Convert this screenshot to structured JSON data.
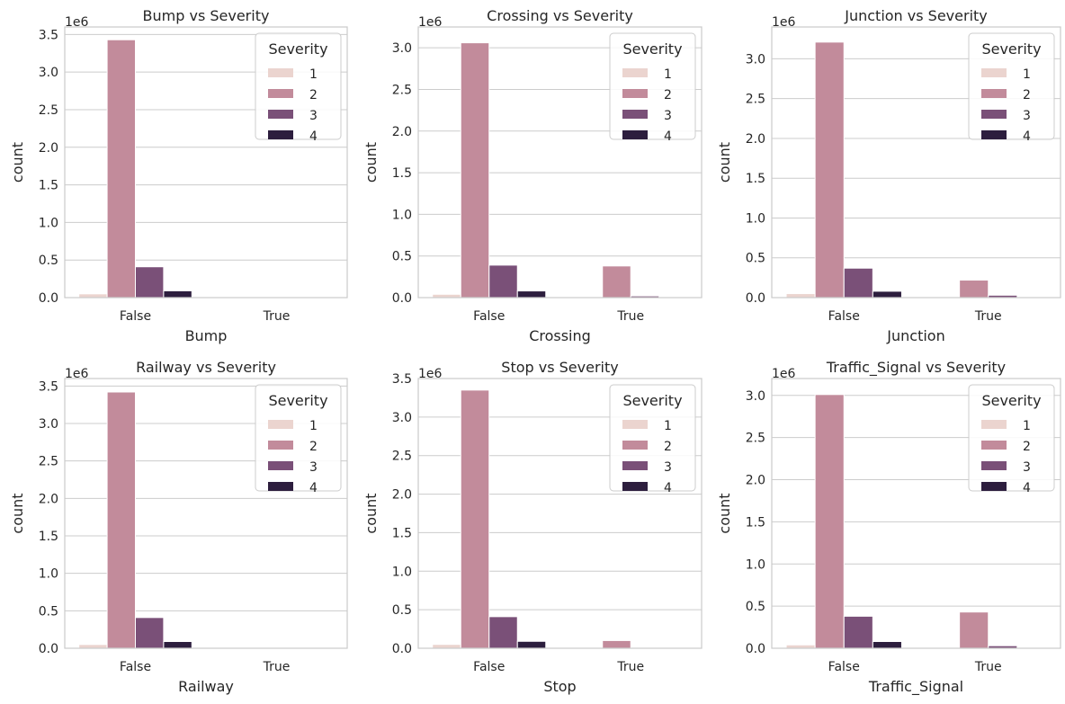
{
  "figure": {
    "background": "#ffffff"
  },
  "palette": {
    "1": "#ebd4cf",
    "2": "#c28b9b",
    "3": "#7a5078",
    "4": "#2d1e3e",
    "grid": "#cccccc",
    "axis_border": "#cccccc",
    "text": "#262626"
  },
  "chart_data": [
    {
      "type": "bar",
      "title": "Bump vs Severity",
      "xlabel": "Bump",
      "ylabel": "count",
      "offset_label": "1e6",
      "categories": [
        "False",
        "True"
      ],
      "yticks": [
        "0.0",
        "0.5",
        "1.0",
        "1.5",
        "2.0",
        "2.5",
        "3.0",
        "3.5"
      ],
      "ylim": [
        0,
        3.6
      ],
      "legend_title": "Severity",
      "legend_location": "upper right",
      "series": [
        {
          "name": "1",
          "values": [
            0.05,
            0.0
          ]
        },
        {
          "name": "2",
          "values": [
            3.43,
            0.002
          ]
        },
        {
          "name": "3",
          "values": [
            0.41,
            0.0
          ]
        },
        {
          "name": "4",
          "values": [
            0.09,
            0.0
          ]
        }
      ]
    },
    {
      "type": "bar",
      "title": "Crossing vs Severity",
      "xlabel": "Crossing",
      "ylabel": "count",
      "offset_label": "1e6",
      "categories": [
        "False",
        "True"
      ],
      "yticks": [
        "0.0",
        "0.5",
        "1.0",
        "1.5",
        "2.0",
        "2.5",
        "3.0"
      ],
      "ylim": [
        0,
        3.25
      ],
      "legend_title": "Severity",
      "legend_location": "upper right",
      "series": [
        {
          "name": "1",
          "values": [
            0.04,
            0.01
          ]
        },
        {
          "name": "2",
          "values": [
            3.06,
            0.38
          ]
        },
        {
          "name": "3",
          "values": [
            0.39,
            0.02
          ]
        },
        {
          "name": "4",
          "values": [
            0.08,
            0.005
          ]
        }
      ]
    },
    {
      "type": "bar",
      "title": "Junction vs Severity",
      "xlabel": "Junction",
      "ylabel": "count",
      "offset_label": "1e6",
      "categories": [
        "False",
        "True"
      ],
      "yticks": [
        "0.0",
        "0.5",
        "1.0",
        "1.5",
        "2.0",
        "2.5",
        "3.0"
      ],
      "ylim": [
        0,
        3.4
      ],
      "legend_title": "Severity",
      "legend_location": "upper right",
      "series": [
        {
          "name": "1",
          "values": [
            0.05,
            0.005
          ]
        },
        {
          "name": "2",
          "values": [
            3.21,
            0.22
          ]
        },
        {
          "name": "3",
          "values": [
            0.37,
            0.03
          ]
        },
        {
          "name": "4",
          "values": [
            0.08,
            0.005
          ]
        }
      ]
    },
    {
      "type": "bar",
      "title": "Railway vs Severity",
      "xlabel": "Railway",
      "ylabel": "count",
      "offset_label": "1e6",
      "categories": [
        "False",
        "True"
      ],
      "yticks": [
        "0.0",
        "0.5",
        "1.0",
        "1.5",
        "2.0",
        "2.5",
        "3.0",
        "3.5"
      ],
      "ylim": [
        0,
        3.6
      ],
      "legend_title": "Severity",
      "legend_location": "upper right",
      "series": [
        {
          "name": "1",
          "values": [
            0.05,
            0.0
          ]
        },
        {
          "name": "2",
          "values": [
            3.42,
            0.01
          ]
        },
        {
          "name": "3",
          "values": [
            0.41,
            0.002
          ]
        },
        {
          "name": "4",
          "values": [
            0.09,
            0.0
          ]
        }
      ]
    },
    {
      "type": "bar",
      "title": "Stop vs Severity",
      "xlabel": "Stop",
      "ylabel": "count",
      "offset_label": "1e6",
      "categories": [
        "False",
        "True"
      ],
      "yticks": [
        "0.0",
        "0.5",
        "1.0",
        "1.5",
        "2.0",
        "2.5",
        "3.0",
        "3.5"
      ],
      "ylim": [
        0,
        3.5
      ],
      "legend_title": "Severity",
      "legend_location": "upper right",
      "series": [
        {
          "name": "1",
          "values": [
            0.05,
            0.002
          ]
        },
        {
          "name": "2",
          "values": [
            3.35,
            0.1
          ]
        },
        {
          "name": "3",
          "values": [
            0.41,
            0.005
          ]
        },
        {
          "name": "4",
          "values": [
            0.09,
            0.002
          ]
        }
      ]
    },
    {
      "type": "bar",
      "title": "Traffic_Signal vs Severity",
      "xlabel": "Traffic_Signal",
      "ylabel": "count",
      "offset_label": "1e6",
      "categories": [
        "False",
        "True"
      ],
      "yticks": [
        "0.0",
        "0.5",
        "1.0",
        "1.5",
        "2.0",
        "2.5",
        "3.0"
      ],
      "ylim": [
        0,
        3.2
      ],
      "legend_title": "Severity",
      "legend_location": "upper right",
      "series": [
        {
          "name": "1",
          "values": [
            0.04,
            0.01
          ]
        },
        {
          "name": "2",
          "values": [
            3.01,
            0.43
          ]
        },
        {
          "name": "3",
          "values": [
            0.38,
            0.03
          ]
        },
        {
          "name": "4",
          "values": [
            0.08,
            0.005
          ]
        }
      ]
    }
  ]
}
